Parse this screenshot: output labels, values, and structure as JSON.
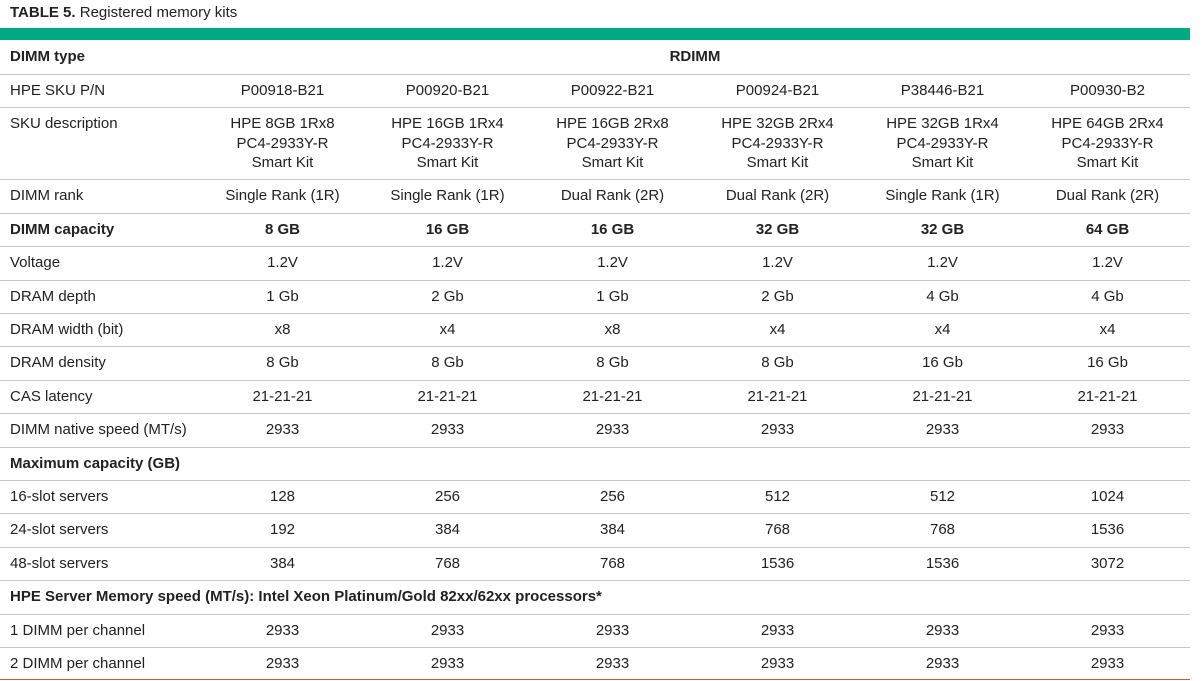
{
  "title": {
    "label": "TABLE 5.",
    "text": "Registered memory kits"
  },
  "header": {
    "label": "DIMM type",
    "value": "RDIMM"
  },
  "rows": [
    {
      "label": "HPE SKU P/N",
      "cells": [
        "P00918-B21",
        "P00920-B21",
        "P00922-B21",
        "P00924-B21",
        "P38446-B21",
        "P00930-B2"
      ]
    },
    {
      "label": "SKU description",
      "cells": [
        [
          "HPE 8GB 1Rx8",
          "PC4-2933Y-R",
          "Smart Kit"
        ],
        [
          "HPE 16GB 1Rx4",
          "PC4-2933Y-R",
          "Smart Kit"
        ],
        [
          "HPE 16GB 2Rx8",
          "PC4-2933Y-R",
          "Smart Kit"
        ],
        [
          "HPE 32GB 2Rx4",
          "PC4-2933Y-R",
          "Smart Kit"
        ],
        [
          "HPE 32GB 1Rx4",
          "PC4-2933Y-R",
          "Smart Kit"
        ],
        [
          "HPE 64GB 2Rx4",
          "PC4-2933Y-R",
          "Smart Kit"
        ]
      ]
    },
    {
      "label": "DIMM rank",
      "cells": [
        "Single Rank (1R)",
        "Single Rank (1R)",
        "Dual Rank (2R)",
        "Dual Rank (2R)",
        "Single Rank (1R)",
        "Dual Rank (2R)"
      ]
    },
    {
      "label": "DIMM capacity",
      "bold": true,
      "cells": [
        "8 GB",
        "16 GB",
        "16 GB",
        "32 GB",
        "32 GB",
        "64 GB"
      ]
    },
    {
      "label": "Voltage",
      "cells": [
        "1.2V",
        "1.2V",
        "1.2V",
        "1.2V",
        "1.2V",
        "1.2V"
      ]
    },
    {
      "label": "DRAM depth",
      "cells": [
        "1 Gb",
        "2 Gb",
        "1 Gb",
        "2 Gb",
        "4 Gb",
        "4 Gb"
      ]
    },
    {
      "label": "DRAM width (bit)",
      "cells": [
        "x8",
        "x4",
        "x8",
        "x4",
        "x4",
        "x4"
      ]
    },
    {
      "label": "DRAM density",
      "cells": [
        "8 Gb",
        "8 Gb",
        "8 Gb",
        "8 Gb",
        "16 Gb",
        "16 Gb"
      ]
    },
    {
      "label": "CAS latency",
      "cells": [
        "21-21-21",
        "21-21-21",
        "21-21-21",
        "21-21-21",
        "21-21-21",
        "21-21-21"
      ]
    },
    {
      "label": "DIMM native speed (MT/s)",
      "cells": [
        "2933",
        "2933",
        "2933",
        "2933",
        "2933",
        "2933"
      ]
    },
    {
      "label": "Maximum capacity (GB)",
      "bold": true
    },
    {
      "label": "16-slot servers",
      "cells": [
        "128",
        "256",
        "256",
        "512",
        "512",
        "1024"
      ]
    },
    {
      "label": "24-slot servers",
      "cells": [
        "192",
        "384",
        "384",
        "768",
        "768",
        "1536"
      ]
    },
    {
      "label": "48-slot servers",
      "cells": [
        "384",
        "768",
        "768",
        "1536",
        "1536",
        "3072"
      ]
    },
    {
      "label": "HPE Server Memory speed (MT/s): Intel Xeon Platinum/Gold 82xx/62xx processors*",
      "bold": true
    },
    {
      "label": "1 DIMM per channel",
      "cells": [
        "2933",
        "2933",
        "2933",
        "2933",
        "2933",
        "2933"
      ]
    },
    {
      "label": "2 DIMM per channel",
      "cells": [
        "2933",
        "2933",
        "2933",
        "2933",
        "2933",
        "2933"
      ]
    }
  ]
}
